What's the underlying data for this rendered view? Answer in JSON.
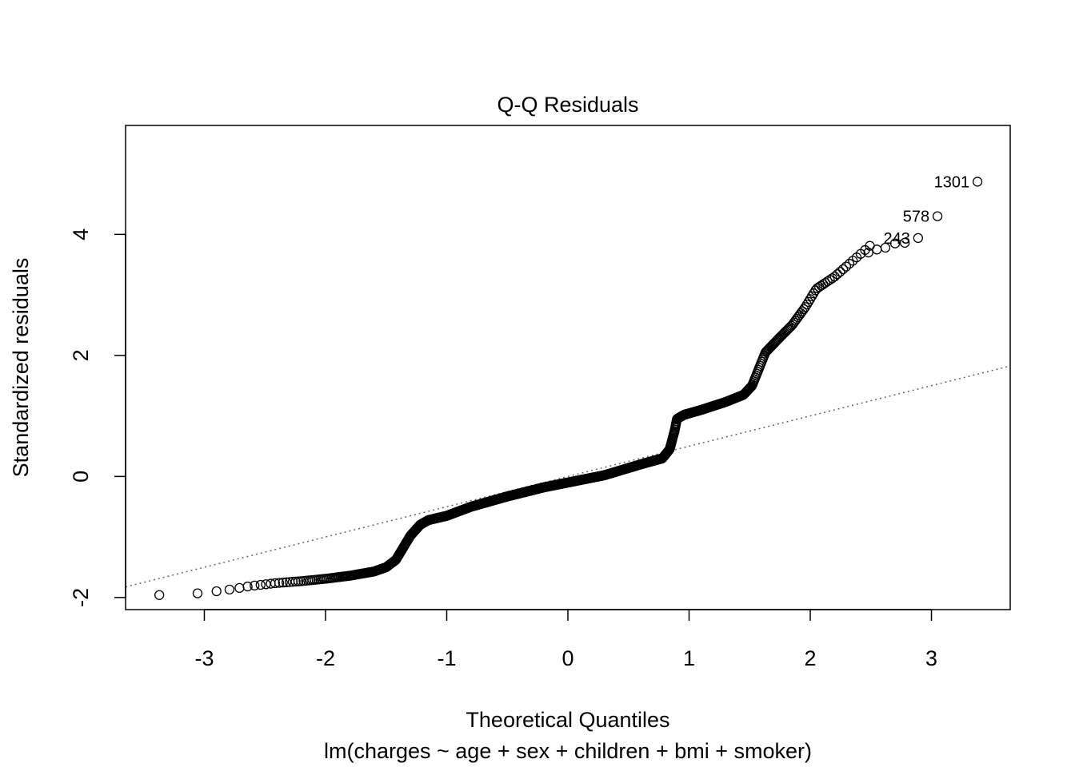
{
  "chart_data": {
    "type": "scatter",
    "title": "Q-Q Residuals",
    "xlabel": "Theoretical Quantiles",
    "subtitle": "lm(charges ~ age + sex + children + bmi + smoker)",
    "ylabel": "Standardized residuals",
    "xlim": [
      -3.65,
      3.65
    ],
    "ylim": [
      -2.2,
      5.8
    ],
    "xticks": [
      -3,
      -2,
      -1,
      0,
      1,
      2,
      3
    ],
    "xtick_labels": [
      "-3",
      "-2",
      "-1",
      "0",
      "1",
      "2",
      "3"
    ],
    "yticks": [
      -2,
      0,
      2,
      4
    ],
    "ytick_labels": [
      "-2",
      "0",
      "2",
      "4"
    ],
    "grid": false,
    "reference_line": {
      "intercept": 0.0,
      "slope": 0.5,
      "style": "dotted"
    },
    "n": 1338,
    "curve_knots": [
      [
        -3.38,
        -1.96
      ],
      [
        -3.05,
        -1.93
      ],
      [
        -2.87,
        -1.89
      ],
      [
        -2.76,
        -1.86
      ],
      [
        -2.62,
        -1.81
      ],
      [
        -2.4,
        -1.76
      ],
      [
        -2.2,
        -1.73
      ],
      [
        -2.0,
        -1.69
      ],
      [
        -1.8,
        -1.64
      ],
      [
        -1.6,
        -1.57
      ],
      [
        -1.5,
        -1.5
      ],
      [
        -1.42,
        -1.38
      ],
      [
        -1.36,
        -1.18
      ],
      [
        -1.3,
        -0.98
      ],
      [
        -1.22,
        -0.8
      ],
      [
        -1.15,
        -0.72
      ],
      [
        -1.0,
        -0.65
      ],
      [
        -0.8,
        -0.5
      ],
      [
        -0.5,
        -0.33
      ],
      [
        -0.2,
        -0.18
      ],
      [
        0.0,
        -0.1
      ],
      [
        0.3,
        0.02
      ],
      [
        0.6,
        0.2
      ],
      [
        0.78,
        0.3
      ],
      [
        0.84,
        0.45
      ],
      [
        0.88,
        0.75
      ],
      [
        0.9,
        0.95
      ],
      [
        0.96,
        1.02
      ],
      [
        1.1,
        1.1
      ],
      [
        1.3,
        1.23
      ],
      [
        1.45,
        1.35
      ],
      [
        1.52,
        1.5
      ],
      [
        1.58,
        1.8
      ],
      [
        1.63,
        2.05
      ],
      [
        1.75,
        2.3
      ],
      [
        1.85,
        2.5
      ],
      [
        1.96,
        2.8
      ],
      [
        2.05,
        3.1
      ],
      [
        2.2,
        3.3
      ],
      [
        2.4,
        3.65
      ]
    ],
    "tail_points": [
      [
        2.48,
        3.7
      ],
      [
        2.55,
        3.75
      ],
      [
        2.62,
        3.78
      ],
      [
        2.7,
        3.85
      ],
      [
        2.78,
        3.86
      ],
      [
        2.89,
        3.94
      ],
      [
        3.05,
        4.3
      ],
      [
        3.38,
        4.87
      ]
    ],
    "point_labels": [
      {
        "label": "1301",
        "x": 3.38,
        "y": 4.87
      },
      {
        "label": "578",
        "x": 3.05,
        "y": 4.3
      },
      {
        "label": "243",
        "x": 2.89,
        "y": 3.94
      }
    ]
  }
}
